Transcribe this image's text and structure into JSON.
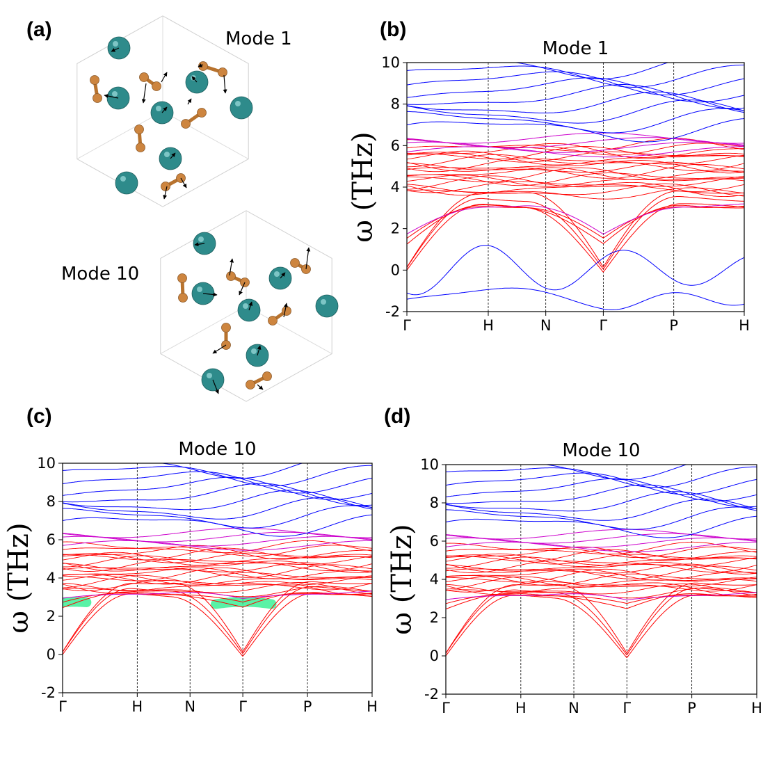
{
  "panels": {
    "a": "(a)",
    "b": "(b)",
    "c": "(c)",
    "d": "(d)"
  },
  "structure": {
    "mode_top": "Mode 1",
    "mode_bottom": "Mode 10"
  },
  "colors": {
    "acoustic": "#ff0000",
    "mixed": "#cc00cc",
    "optic": "#0000ff",
    "highlight": "#22ee88",
    "atom_large": "#2e8b8b",
    "atom_small": "#cd853f"
  },
  "chart_data": [
    {
      "id": "b",
      "type": "line",
      "title": "Mode 1",
      "ylabel": "ω (THz)",
      "xlabel": "",
      "ylim": [
        -2,
        10
      ],
      "yticks": [
        -2,
        0,
        2,
        4,
        6,
        8,
        10
      ],
      "kpoints": [
        "Γ",
        "H",
        "N",
        "Γ",
        "P",
        "H"
      ],
      "kpos": [
        0,
        1,
        1.707,
        2.414,
        3.28,
        4.146
      ],
      "unstable": true,
      "highlight": false
    },
    {
      "id": "c",
      "type": "line",
      "title": "Mode 10",
      "ylabel": "ω (THz)",
      "xlabel": "",
      "ylim": [
        -2,
        10
      ],
      "yticks": [
        -2,
        0,
        2,
        4,
        6,
        8,
        10
      ],
      "kpoints": [
        "Γ",
        "H",
        "N",
        "Γ",
        "P",
        "H"
      ],
      "kpos": [
        0,
        1,
        1.707,
        2.414,
        3.28,
        4.146
      ],
      "unstable": false,
      "highlight": true
    },
    {
      "id": "d",
      "type": "line",
      "title": "Mode 10",
      "ylabel": "ω (THz)",
      "xlabel": "",
      "ylim": [
        -2,
        10
      ],
      "yticks": [
        -2,
        0,
        2,
        4,
        6,
        8,
        10
      ],
      "kpoints": [
        "Γ",
        "H",
        "N",
        "Γ",
        "P",
        "H"
      ],
      "kpos": [
        0,
        1,
        1.707,
        2.414,
        3.28,
        4.146
      ],
      "unstable": false,
      "highlight": false
    }
  ]
}
